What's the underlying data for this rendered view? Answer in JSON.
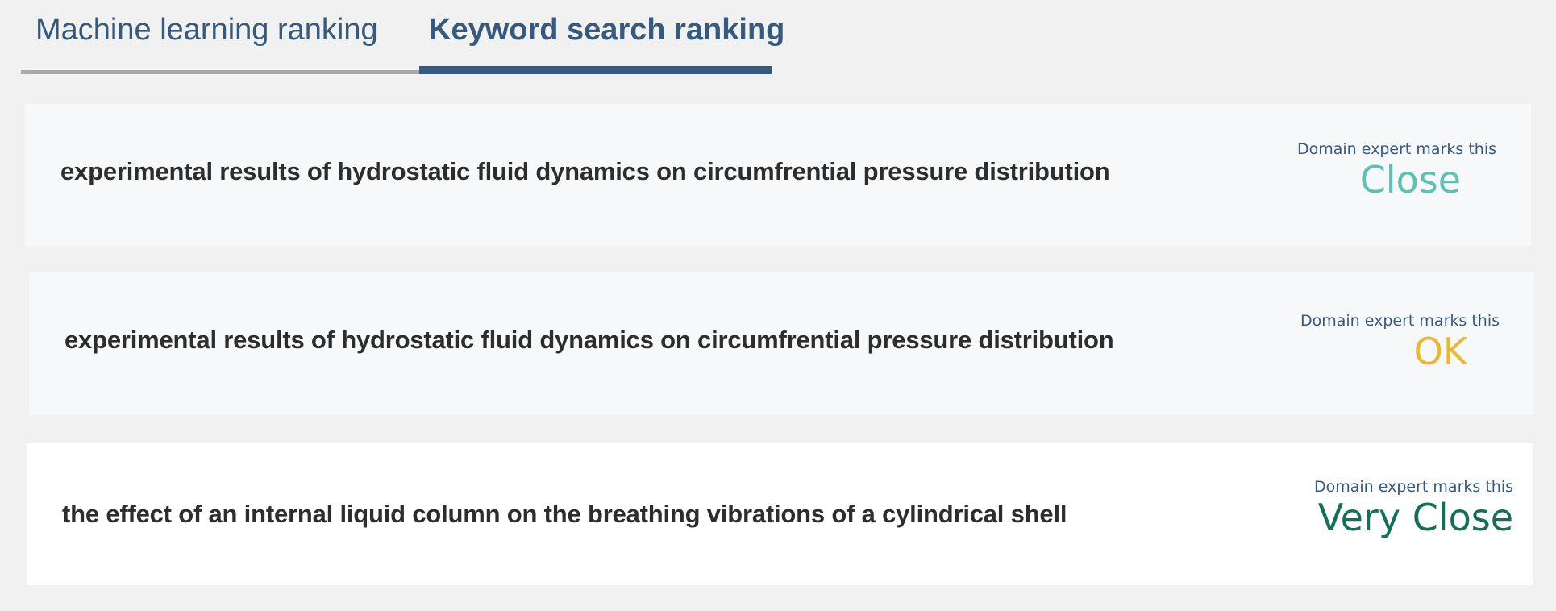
{
  "tabs": [
    {
      "label": "Machine learning ranking",
      "active": false
    },
    {
      "label": "Keyword search ranking",
      "active": true
    }
  ],
  "results": [
    {
      "title": "experimental results of hydrostatic fluid dynamics on circumfrential pressure distribution",
      "caption": "Domain expert marks this",
      "rating": "Close",
      "rating_color": "#5fbfb5"
    },
    {
      "title": "experimental results of hydrostatic fluid dynamics on circumfrential pressure distribution",
      "caption": "Domain expert marks this",
      "rating": "OK",
      "rating_color": "#e9b83a"
    },
    {
      "title": "the effect of an internal liquid column on the breathing vibrations of a cylindrical shell",
      "caption": "Domain expert marks this",
      "rating": "Very Close",
      "rating_color": "#166d58"
    }
  ]
}
